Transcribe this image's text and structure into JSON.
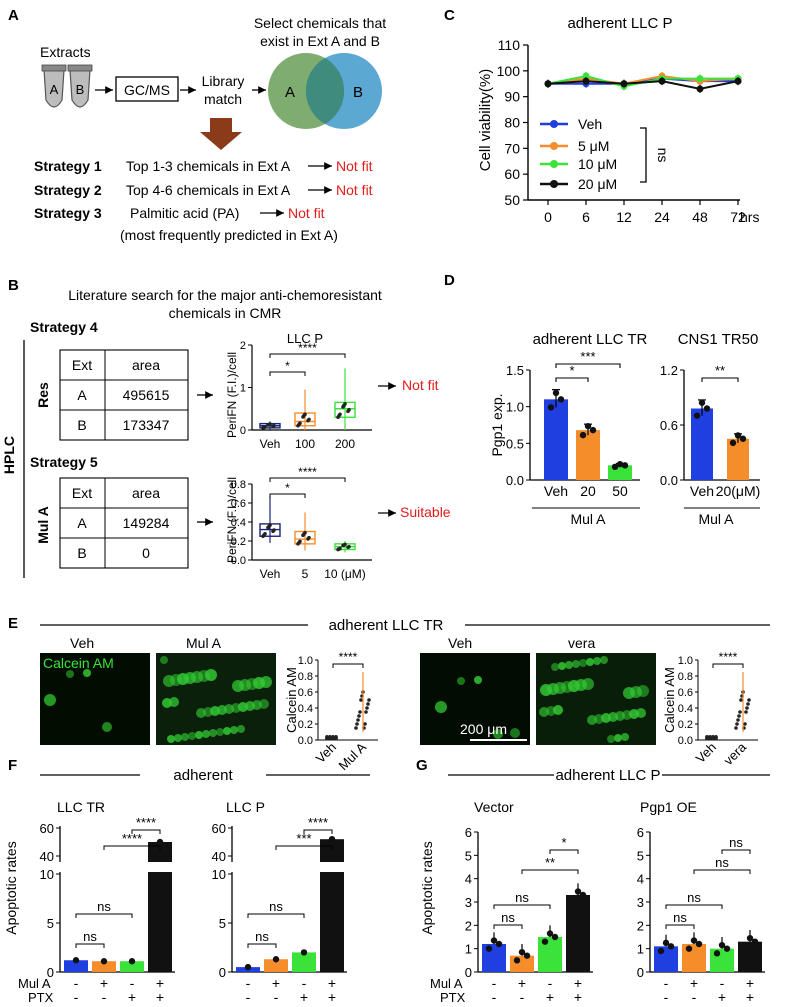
{
  "panels": {
    "A": {
      "label": "A",
      "extracts": "Extracts",
      "tube_a": "A",
      "tube_b": "B",
      "gcms": "GC/MS",
      "library": "Library",
      "match": "match",
      "select_line1": "Select chemicals that",
      "select_line2": "exist in Ext A and B",
      "venn_a": "A",
      "venn_b": "B",
      "strategies": [
        {
          "name": "Strategy 1",
          "desc": "Top 1-3 chemicals in Ext A",
          "result": "Not fit"
        },
        {
          "name": "Strategy 2",
          "desc": "Top 4-6 chemicals in Ext A",
          "result": "Not fit"
        },
        {
          "name": "Strategy 3",
          "desc": "Palmitic acid (PA)",
          "result": "Not fit"
        }
      ],
      "strategy3_note": "(most frequently predicted in Ext A)",
      "venn_colors": {
        "a": "#7fad6f",
        "b": "#5ba8d3"
      },
      "arrow_color": "#8b3a1a"
    },
    "B": {
      "label": "B",
      "title_line1": "Literature search for the major anti-chemoresistant",
      "title_line2": "chemicals in CMR",
      "strategy4": "Strategy 4",
      "strategy5": "Strategy 5",
      "hplc": "HPLC",
      "res": "Res",
      "mula": "Mul A",
      "table_headers": [
        "Ext",
        "area"
      ],
      "res_rows": [
        [
          "A",
          "495615"
        ],
        [
          "B",
          "173347"
        ]
      ],
      "mula_rows": [
        [
          "A",
          "149284"
        ],
        [
          "B",
          "0"
        ]
      ],
      "res_result": "Not fit",
      "mula_result": "Suitable",
      "plot1_title": "LLC P",
      "plot_ylabel": "PeriFN (F.I.)/cell",
      "plot1_xticks": [
        "Veh",
        "100",
        "200"
      ],
      "plot1_yticks": [
        "0",
        "1",
        "2"
      ],
      "plot1_sig": [
        "*",
        "****"
      ],
      "plot2_xticks": [
        "Veh",
        "5",
        "10 (μM)"
      ],
      "plot2_yticks": [
        "0.0",
        "0.2",
        "0.4",
        "0.6",
        "0.8"
      ],
      "plot2_sig": [
        "*",
        "****"
      ]
    },
    "C": {
      "label": "C",
      "title": "adherent  LLC P",
      "ylabel": "Cell viability(%)",
      "yticks": [
        "50",
        "60",
        "70",
        "80",
        "90",
        "100",
        "110"
      ],
      "xticks": [
        "0",
        "6",
        "12",
        "24",
        "48",
        "72"
      ],
      "xunit": "hrs",
      "legend": [
        "Veh",
        "5 μM",
        "10 μM",
        "20 μM"
      ],
      "ns": "ns"
    },
    "D": {
      "label": "D",
      "title1": "adherent LLC TR",
      "title2": "CNS1 TR50",
      "ylabel": "Pgp1 exp.",
      "yticks1": [
        "0.0",
        "0.5",
        "1.0",
        "1.5"
      ],
      "yticks2": [
        "0.0",
        "0.6",
        "1.2"
      ],
      "xticks1": [
        "Veh",
        "20",
        "50"
      ],
      "xticks2": [
        "Veh",
        "20(μM)"
      ],
      "group": "Mul A",
      "sig1": [
        "*",
        "***"
      ],
      "sig2": [
        "**"
      ]
    },
    "E": {
      "label": "E",
      "title": "adherent  LLC TR",
      "img_labels": [
        "Veh",
        "Mul A",
        "Veh",
        "vera"
      ],
      "calcein_overlay": "Calcein AM",
      "scale_bar": "200 μm",
      "ylabel": "Calcein AM",
      "yticks": [
        "0.0",
        "0.2",
        "0.4",
        "0.6",
        "0.8",
        "1.0"
      ],
      "xticks1": [
        "Veh",
        "Mul A"
      ],
      "xticks2": [
        "Veh",
        "vera"
      ],
      "sig": "****"
    },
    "F": {
      "label": "F",
      "header": "adherent",
      "sub1": "LLC TR",
      "sub2": "LLC P",
      "ylabel": "Apoptotic rates",
      "yticks": [
        "0",
        "5",
        "10",
        "40",
        "60"
      ],
      "row_labels": [
        "Mul A",
        "PTX"
      ],
      "mula_signs": [
        "-",
        "+",
        "-",
        "+"
      ],
      "ptx_signs": [
        "-",
        "-",
        "+",
        "+"
      ],
      "sig_tr": [
        "ns",
        "ns",
        "****",
        "****"
      ],
      "sig_p": [
        "ns",
        "ns",
        "****",
        "***"
      ]
    },
    "G": {
      "label": "G",
      "header": "adherent  LLC P",
      "sub1": "Vector",
      "sub2": "Pgp1 OE",
      "ylabel": "Apoptotic rates",
      "yticks": [
        "0",
        "1",
        "2",
        "3",
        "4",
        "5",
        "6"
      ],
      "row_labels": [
        "Mul A",
        "PTX"
      ],
      "mula_signs": [
        "-",
        "+",
        "-",
        "+"
      ],
      "ptx_signs": [
        "-",
        "-",
        "+",
        "+"
      ],
      "sig_vec": [
        "ns",
        "ns",
        "**",
        "*"
      ],
      "sig_oe": [
        "ns",
        "ns",
        "ns",
        "ns"
      ]
    }
  },
  "colors": {
    "blue": "#1f3fe0",
    "orange": "#f58d2a",
    "green": "#3ae23a",
    "black": "#111111",
    "red": "#e41a1a",
    "navy": "#1a237e"
  },
  "chart_data": [
    {
      "type": "line",
      "title": "adherent  LLC P",
      "ylabel": "Cell viability(%)",
      "x": [
        "0",
        "6",
        "12",
        "24",
        "48",
        "72"
      ],
      "xlabel": "hrs",
      "ylim": [
        50,
        110
      ],
      "series": [
        {
          "name": "Veh",
          "values": [
            95,
            95,
            95,
            97,
            96,
            96
          ]
        },
        {
          "name": "5 μM",
          "values": [
            95,
            97,
            95,
            98,
            96,
            97
          ]
        },
        {
          "name": "10 μM",
          "values": [
            95,
            98,
            94,
            97,
            97,
            97
          ]
        },
        {
          "name": "20 μM",
          "values": [
            95,
            96,
            95,
            96,
            93,
            96
          ]
        }
      ]
    },
    {
      "type": "bar",
      "title": "adherent LLC TR",
      "ylabel": "Pgp1 exp.",
      "categories": [
        "Veh",
        "20",
        "50"
      ],
      "values": [
        1.1,
        0.68,
        0.2
      ],
      "ylim": [
        0,
        1.5
      ]
    },
    {
      "type": "bar",
      "title": "CNS1 TR50",
      "ylabel": "Pgp1 exp.",
      "categories": [
        "Veh",
        "20(μM)"
      ],
      "values": [
        0.78,
        0.45
      ],
      "ylim": [
        0,
        1.2
      ]
    },
    {
      "type": "bar",
      "title": "LLC TR",
      "ylabel": "Apoptotic rates",
      "categories": [
        "-/-",
        "+/-",
        "-/+",
        "+/+"
      ],
      "values": [
        1.2,
        1.1,
        1.1,
        50
      ]
    },
    {
      "type": "bar",
      "title": "LLC P",
      "ylabel": "Apoptotic rates",
      "categories": [
        "-/-",
        "+/-",
        "-/+",
        "+/+"
      ],
      "values": [
        0.5,
        1.3,
        2.0,
        52
      ]
    },
    {
      "type": "bar",
      "title": "Vector",
      "ylabel": "Apoptotic rates",
      "categories": [
        "-/-",
        "+/-",
        "-/+",
        "+/+"
      ],
      "values": [
        1.2,
        0.7,
        1.5,
        3.3
      ],
      "ylim": [
        0,
        6
      ]
    },
    {
      "type": "bar",
      "title": "Pgp1 OE",
      "ylabel": "Apoptotic rates",
      "categories": [
        "-/-",
        "+/-",
        "-/+",
        "+/+"
      ],
      "values": [
        1.1,
        1.2,
        1.0,
        1.3
      ],
      "ylim": [
        0,
        6
      ]
    }
  ]
}
